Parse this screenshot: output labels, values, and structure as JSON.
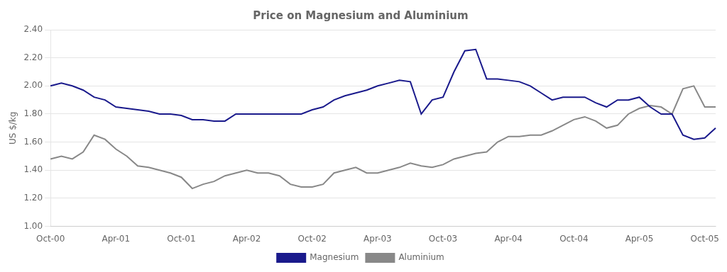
{
  "chart_data": {
    "type": "line",
    "title": "Price on Magnesium and Aluminium",
    "y_label": "US $/kg",
    "categories": [
      "Oct-00",
      null,
      null,
      null,
      null,
      null,
      "Apr-01",
      null,
      null,
      null,
      null,
      null,
      "Oct-01",
      null,
      null,
      null,
      null,
      null,
      "Apr-02",
      null,
      null,
      null,
      null,
      null,
      "Oct-02",
      null,
      null,
      null,
      null,
      null,
      "Apr-03",
      null,
      null,
      null,
      null,
      null,
      "Oct-03",
      null,
      null,
      null,
      null,
      null,
      "Apr-04",
      null,
      null,
      null,
      null,
      null,
      "Oct-04",
      null,
      null,
      null,
      null,
      null,
      "Apr-05",
      null,
      null,
      null,
      null,
      null,
      "Oct-05",
      null
    ],
    "series": [
      {
        "name": "Magnesium",
        "color": "#1a1a8c",
        "values": [
          2.0,
          2.02,
          2.0,
          1.97,
          1.92,
          1.9,
          1.85,
          1.84,
          1.83,
          1.82,
          1.8,
          1.8,
          1.79,
          1.76,
          1.76,
          1.75,
          1.75,
          1.8,
          1.8,
          1.8,
          1.8,
          1.8,
          1.8,
          1.8,
          1.83,
          1.85,
          1.9,
          1.93,
          1.95,
          1.97,
          2.0,
          2.02,
          2.04,
          2.03,
          1.8,
          1.9,
          1.92,
          2.1,
          2.25,
          2.26,
          2.05,
          2.05,
          2.04,
          2.03,
          2.0,
          1.95,
          1.9,
          1.92,
          1.92,
          1.92,
          1.88,
          1.85,
          1.9,
          1.9,
          1.92,
          1.85,
          1.8,
          1.8,
          1.65,
          1.62,
          1.63,
          1.7
        ]
      },
      {
        "name": "Aluminium",
        "color": "#888888",
        "values": [
          1.48,
          1.5,
          1.48,
          1.53,
          1.65,
          1.62,
          1.55,
          1.5,
          1.43,
          1.42,
          1.4,
          1.38,
          1.35,
          1.27,
          1.3,
          1.32,
          1.36,
          1.38,
          1.4,
          1.38,
          1.38,
          1.36,
          1.3,
          1.28,
          1.28,
          1.3,
          1.38,
          1.4,
          1.42,
          1.38,
          1.38,
          1.4,
          1.42,
          1.45,
          1.43,
          1.42,
          1.44,
          1.48,
          1.5,
          1.52,
          1.53,
          1.6,
          1.64,
          1.64,
          1.65,
          1.65,
          1.68,
          1.72,
          1.76,
          1.78,
          1.75,
          1.7,
          1.72,
          1.8,
          1.84,
          1.86,
          1.85,
          1.8,
          1.98,
          2.0,
          1.85,
          1.85
        ]
      }
    ],
    "ylim": [
      1.0,
      2.4
    ],
    "yticks": [
      {
        "value": 1.0,
        "label": "1.00"
      },
      {
        "value": 1.2,
        "label": "1.20"
      },
      {
        "value": 1.4,
        "label": "1.40"
      },
      {
        "value": 1.6,
        "label": "1.60"
      },
      {
        "value": 1.8,
        "label": "1.80"
      },
      {
        "value": 2.0,
        "label": "2.00"
      },
      {
        "value": 2.2,
        "label": "2.20"
      },
      {
        "value": 2.4,
        "label": "2.40"
      }
    ],
    "grid": true,
    "legend": "bottom"
  }
}
